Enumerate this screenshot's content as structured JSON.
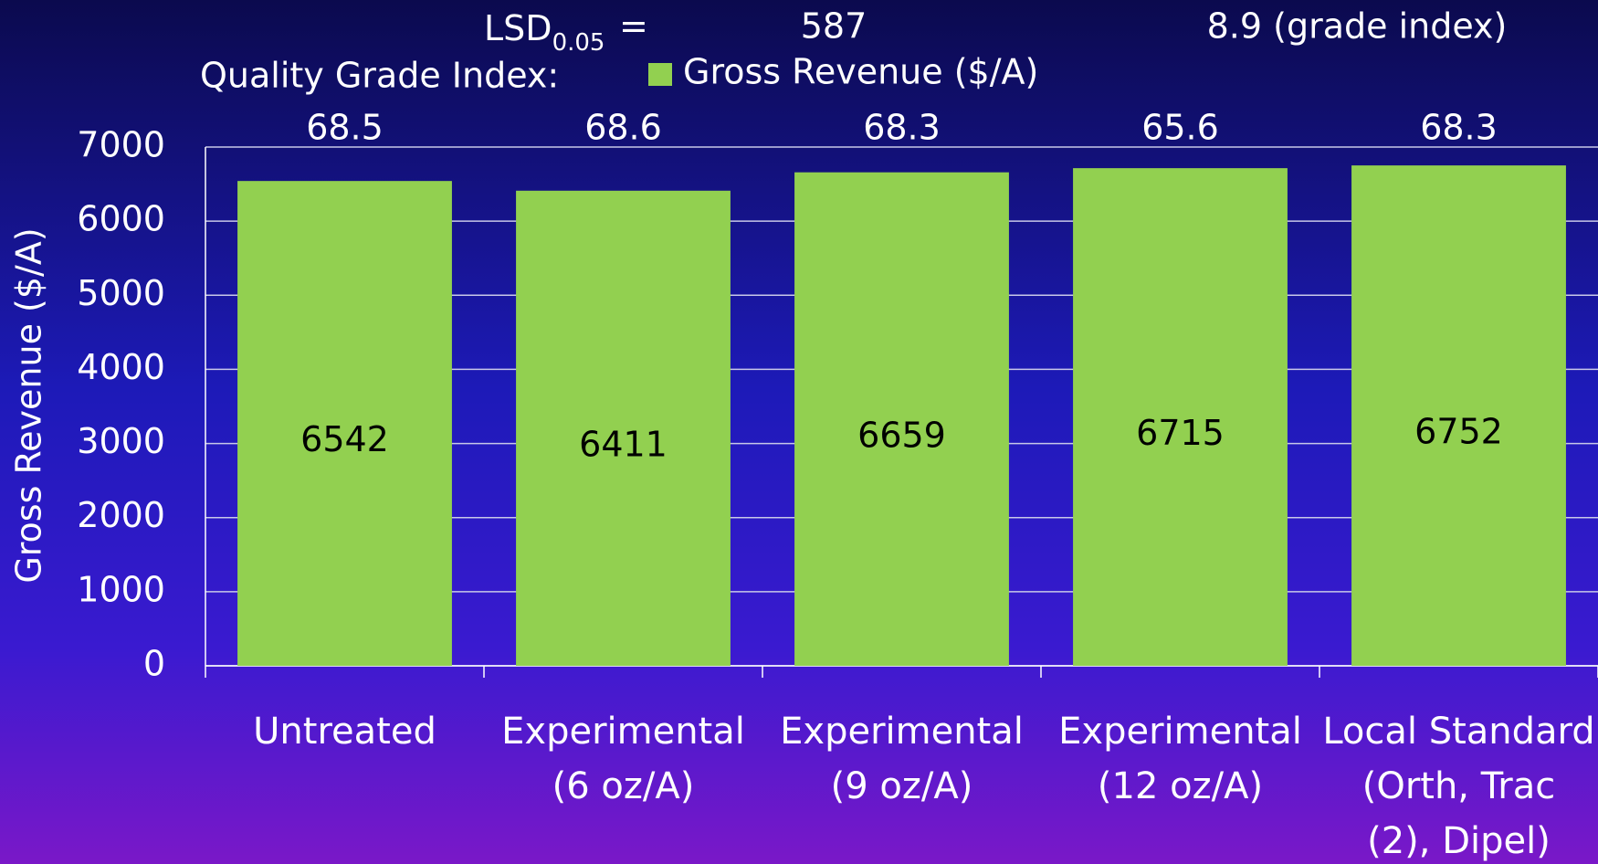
{
  "chart_data": {
    "type": "bar",
    "lsd": {
      "label": "LSD",
      "subscript": "0.05",
      "equals": "=",
      "revenue": 587,
      "grade": "8.9 (grade index)"
    },
    "grade_label": "Quality Grade Index:",
    "grade_values": [
      68.5,
      68.6,
      68.3,
      65.6,
      68.3
    ],
    "ylabel": "Gross Revenue ($/A)",
    "categories": [
      [
        "Untreated"
      ],
      [
        "Experimental",
        "(6 oz/A)"
      ],
      [
        "Experimental",
        "(9 oz/A)"
      ],
      [
        "Experimental",
        "(12 oz/A)"
      ],
      [
        "Local Standard",
        "(Orth, Trac",
        "(2), Dipel)"
      ]
    ],
    "series": [
      {
        "name": "Gross Revenue ($/A)",
        "color": "#92d050",
        "values": [
          6542,
          6411,
          6659,
          6715,
          6752
        ]
      }
    ],
    "ylim": [
      0,
      7000
    ],
    "yticks": [
      0,
      1000,
      2000,
      3000,
      4000,
      5000,
      6000,
      7000
    ],
    "grid": true
  }
}
